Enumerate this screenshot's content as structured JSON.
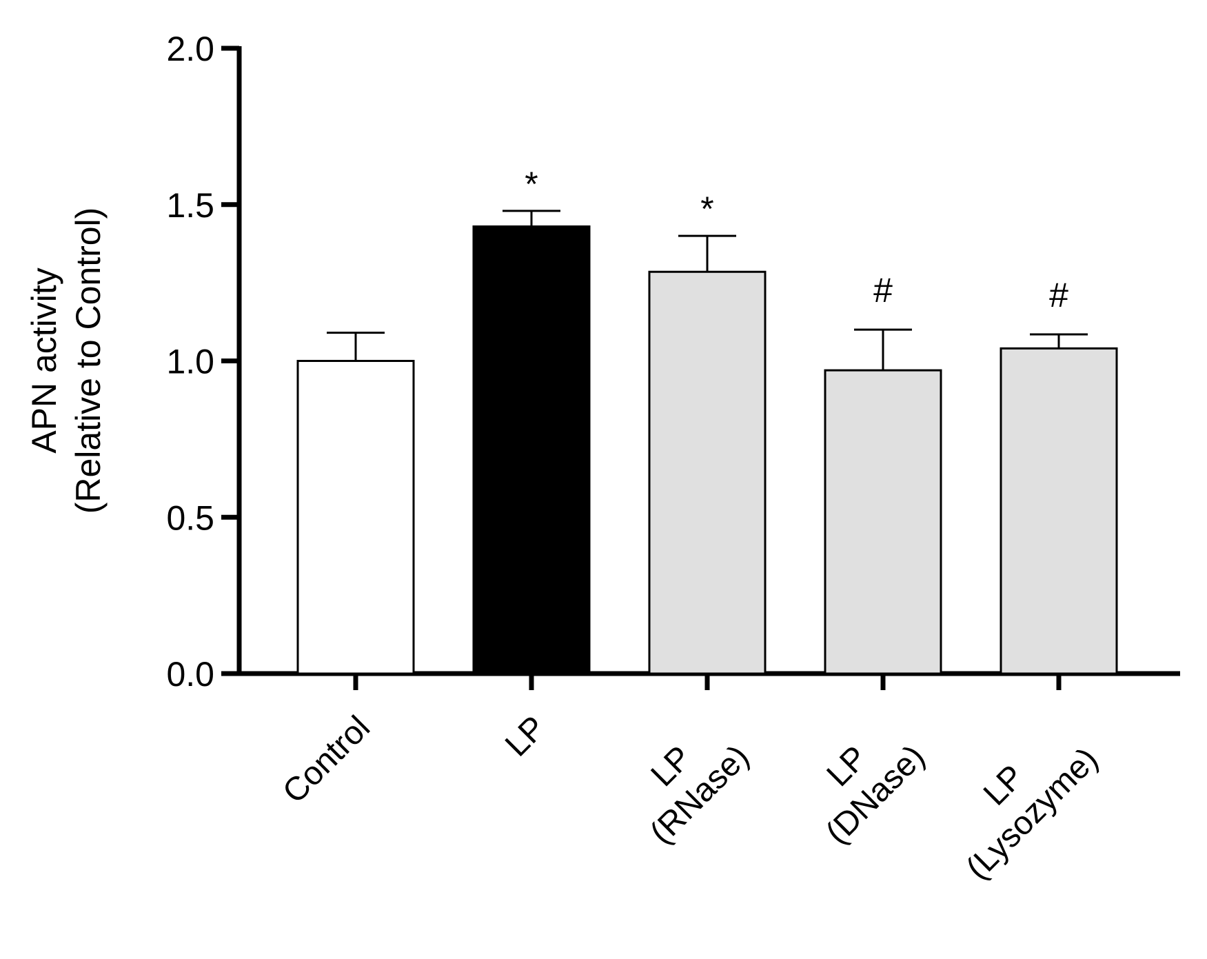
{
  "chart_data": {
    "type": "bar",
    "title": "",
    "xlabel": "",
    "ylabel_lines": [
      "APN activity",
      "(Relative to Control)"
    ],
    "ylim": [
      0,
      2.0
    ],
    "yticks": [
      {
        "value": 0.0,
        "label": "0.0"
      },
      {
        "value": 0.5,
        "label": "0.5"
      },
      {
        "value": 1.0,
        "label": "1.0"
      },
      {
        "value": 1.5,
        "label": "1.5"
      },
      {
        "value": 2.0,
        "label": "2.0"
      }
    ],
    "grid": false,
    "categories": [
      {
        "lines": [
          "Control"
        ],
        "value": 1.0,
        "error": 0.09,
        "color": "#ffffff",
        "annotation": ""
      },
      {
        "lines": [
          "LP"
        ],
        "value": 1.43,
        "error": 0.05,
        "color": "#000000",
        "annotation": "*"
      },
      {
        "lines": [
          "LP",
          "(RNase)"
        ],
        "value": 1.285,
        "error": 0.115,
        "color": "#e0e0e0",
        "annotation": "*"
      },
      {
        "lines": [
          "LP",
          "(DNase)"
        ],
        "value": 0.97,
        "error": 0.13,
        "color": "#e0e0e0",
        "annotation": "#"
      },
      {
        "lines": [
          "LP",
          "(Lysozyme)"
        ],
        "value": 1.04,
        "error": 0.045,
        "color": "#e0e0e0",
        "annotation": "#"
      }
    ]
  }
}
